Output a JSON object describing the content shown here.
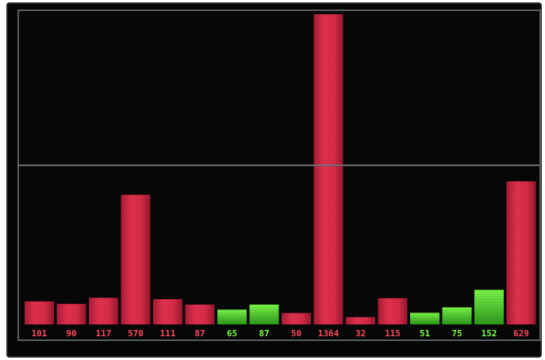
{
  "colors": {
    "background": "#070707",
    "frame": "#5a5e63",
    "threshold_line": "#6b6f74",
    "red": "#e8324f",
    "red_dark": "#a81a33",
    "green": "#5dea3a",
    "green_dark": "#2f9e1c",
    "label_red": "#ff4a5e",
    "label_green": "#7dff4a"
  },
  "chart_data": {
    "type": "bar",
    "categories": [
      "101",
      "90",
      "117",
      "570",
      "111",
      "87",
      "65",
      "87",
      "50",
      "1364",
      "32",
      "115",
      "51",
      "75",
      "152",
      "629"
    ],
    "values": [
      101,
      90,
      117,
      570,
      111,
      87,
      65,
      87,
      50,
      1364,
      32,
      115,
      51,
      75,
      152,
      629
    ],
    "bar_colors": [
      "red",
      "red",
      "red",
      "red",
      "red",
      "red",
      "green",
      "green",
      "red",
      "red",
      "red",
      "red",
      "green",
      "green",
      "green",
      "red"
    ],
    "threshold": 700,
    "ylim": [
      0,
      1364
    ],
    "grid": false,
    "title": "",
    "xlabel": "",
    "ylabel": ""
  }
}
